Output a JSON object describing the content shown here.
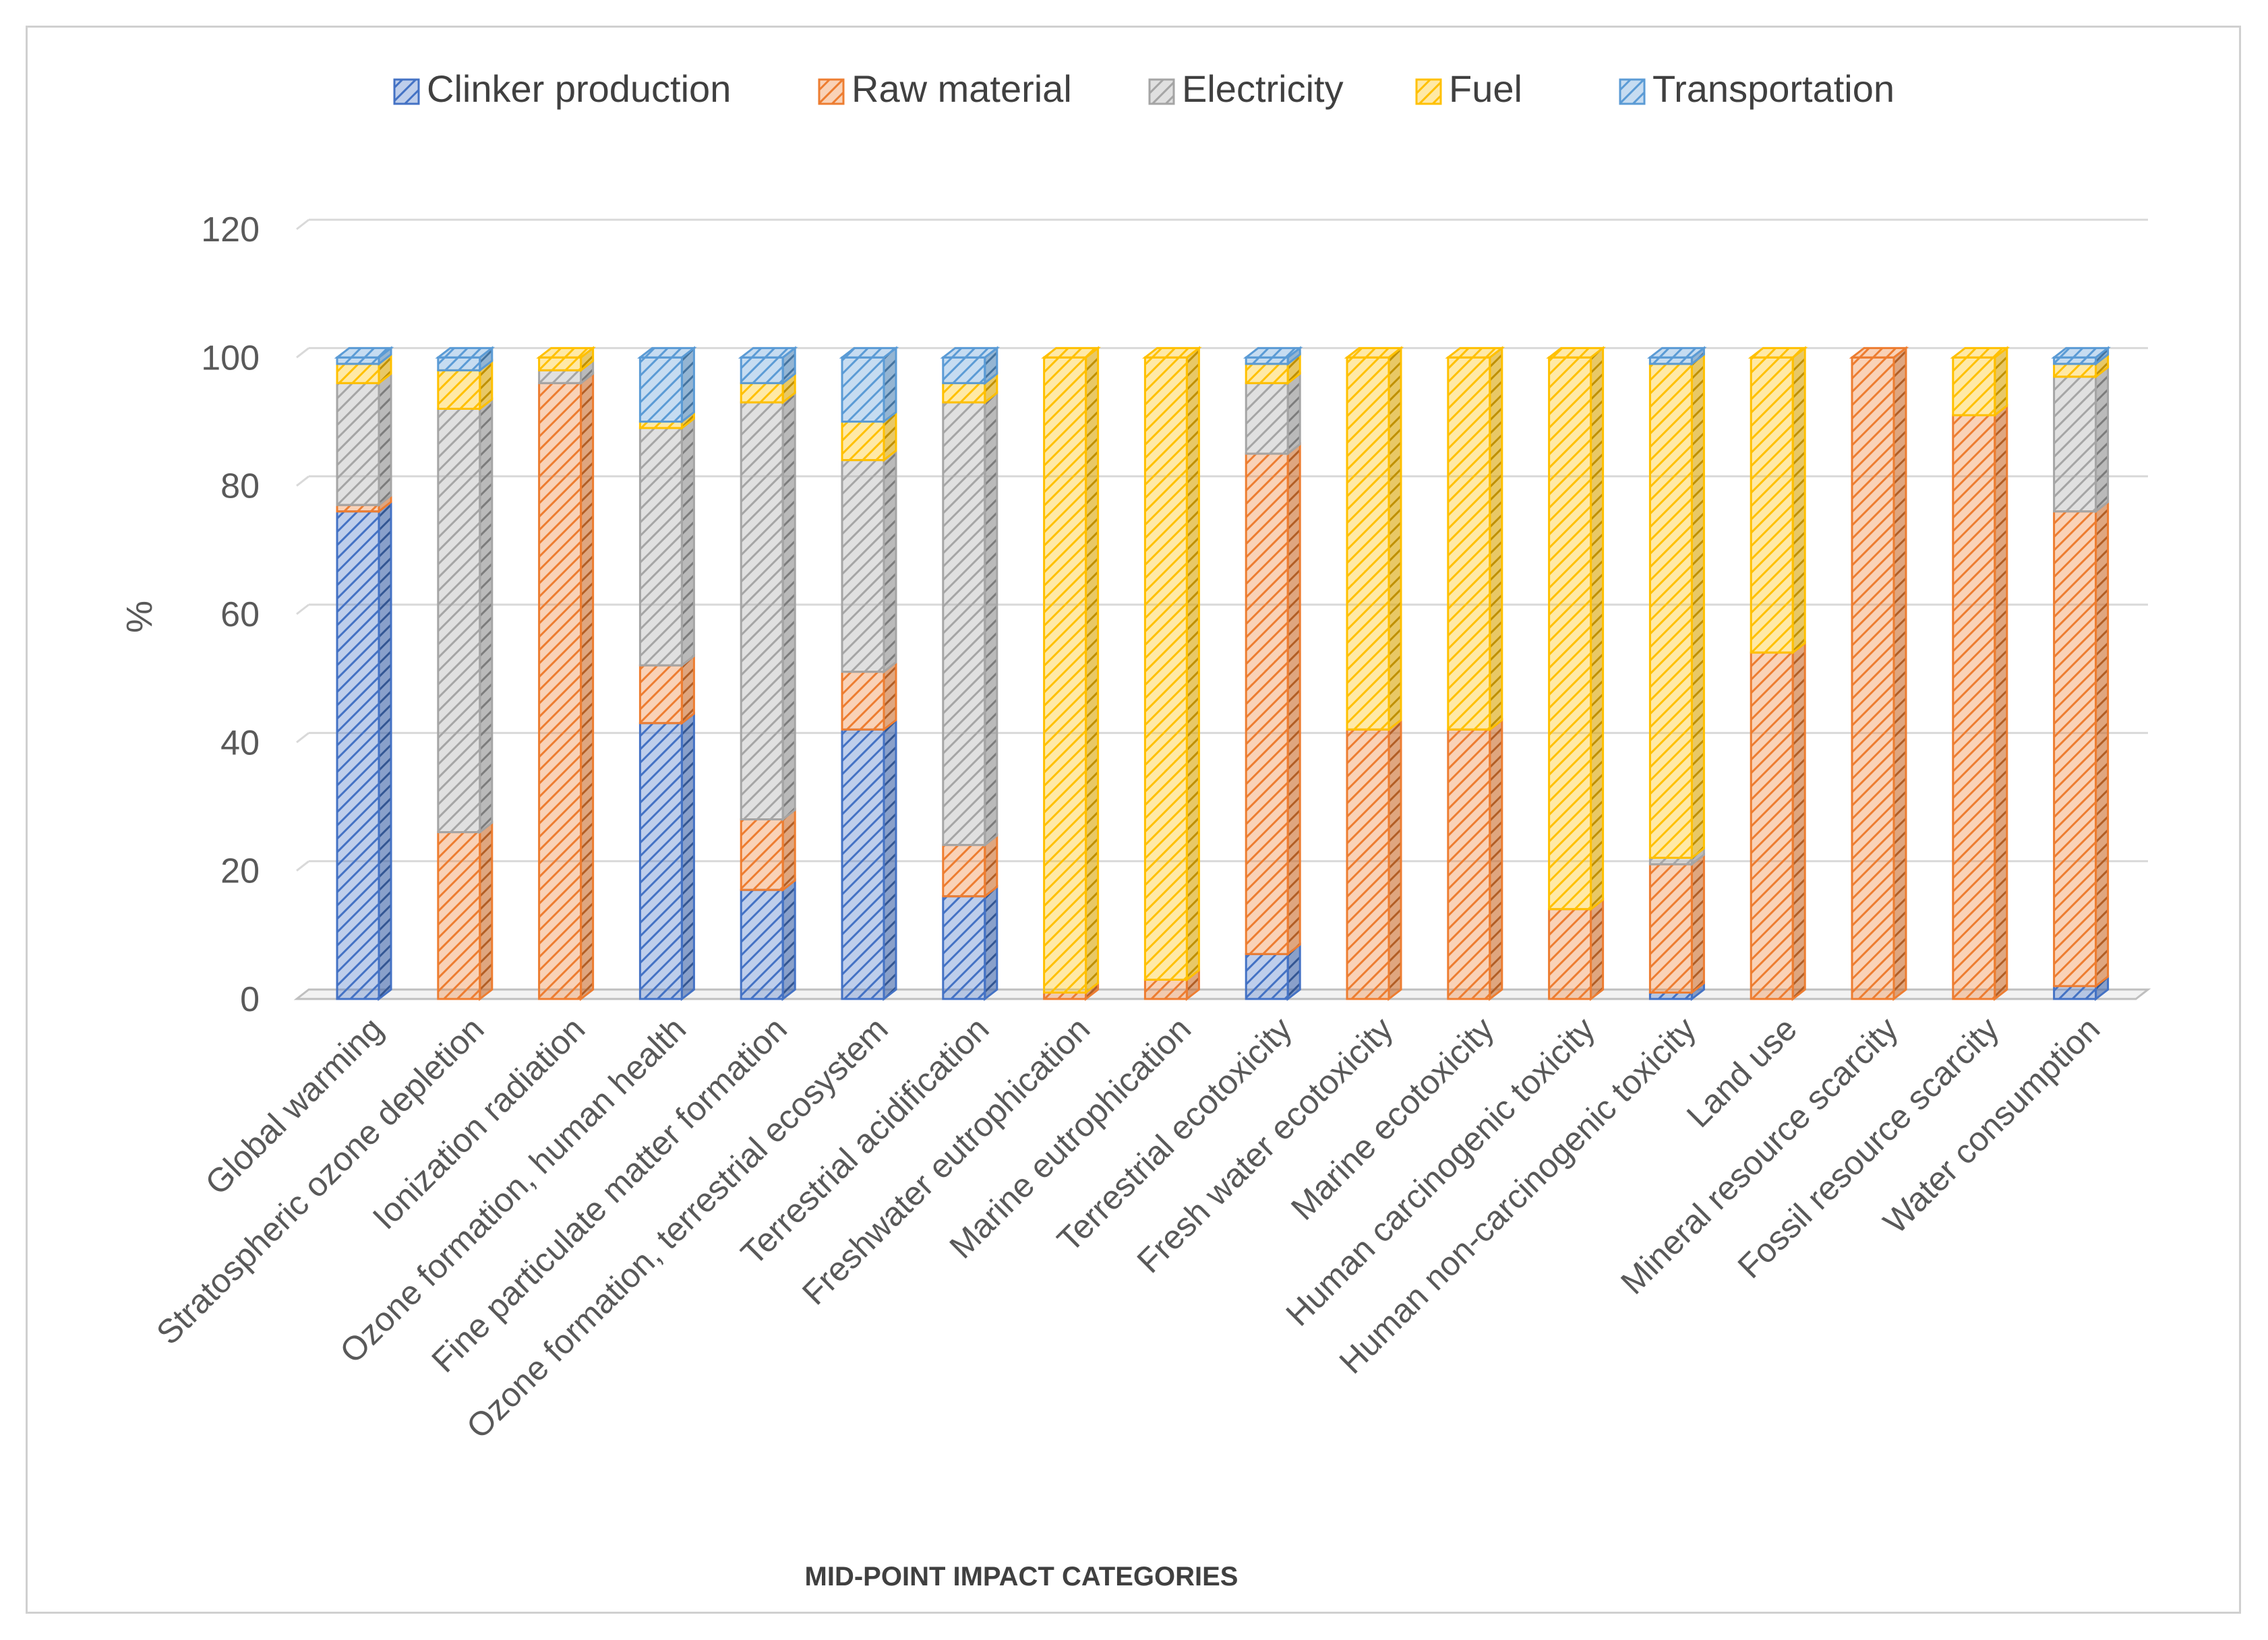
{
  "chart_data": {
    "type": "bar",
    "stacked": true,
    "title": "",
    "xlabel": "MID-POINT IMPACT CATEGORIES",
    "ylabel": "%",
    "ylim": [
      0,
      120
    ],
    "yticks": [
      0,
      20,
      40,
      60,
      80,
      100,
      120
    ],
    "grid": true,
    "legend_position": "top",
    "categories": [
      "Global warming",
      "Stratospheric ozone depletion",
      "Ionization radiation",
      "Ozone formation, human health",
      "Fine particulate matter formation",
      "Ozone formation, terrestrial ecosystem",
      "Terrestrial acidification",
      "Freshwater eutrophication",
      "Marine eutrophication",
      "Terrestrial ecotoxicity",
      "Fresh water ecotoxicity",
      "Marine ecotoxicity",
      "Human carcinogenic toxicity",
      "Human non-carcinogenic toxicity",
      "Land use",
      "Mineral resource scarcity",
      "Fossil resource scarcity",
      "Water consumption"
    ],
    "series": [
      {
        "name": "Clinker production",
        "color": "#4472c4",
        "values": [
          76,
          0,
          0,
          43,
          17,
          42,
          16,
          0,
          0,
          7,
          0,
          0,
          0,
          1,
          0,
          0,
          0,
          2
        ]
      },
      {
        "name": "Raw material",
        "color": "#ed7d31",
        "values": [
          1,
          26,
          96,
          9,
          11,
          9,
          8,
          1,
          3,
          78,
          42,
          42,
          14,
          20,
          54,
          100,
          91,
          74
        ]
      },
      {
        "name": "Electricity",
        "color": "#a5a5a5",
        "values": [
          19,
          66,
          2,
          37,
          65,
          33,
          69,
          0,
          0,
          11,
          0,
          0,
          0,
          1,
          0,
          0,
          0,
          21
        ]
      },
      {
        "name": "Fuel",
        "color": "#ffc000",
        "values": [
          3,
          6,
          2,
          1,
          3,
          6,
          3,
          99,
          97,
          3,
          58,
          58,
          86,
          77,
          46,
          0,
          9,
          2
        ]
      },
      {
        "name": "Transportation",
        "color": "#5b9bd5",
        "values": [
          1,
          2,
          0,
          10,
          4,
          10,
          4,
          0,
          0,
          1,
          0,
          0,
          0,
          1,
          0,
          0,
          0,
          1
        ]
      }
    ]
  }
}
